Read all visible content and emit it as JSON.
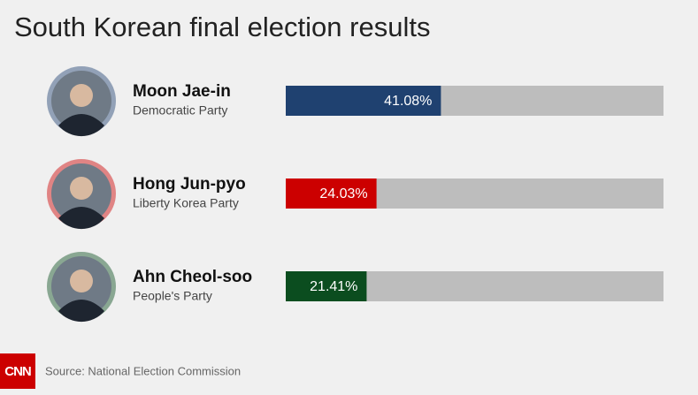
{
  "chart_data": {
    "type": "bar",
    "orientation": "horizontal",
    "title": "South Korean final election results",
    "categories": [
      "Moon Jae-in",
      "Hong Jun-pyo",
      "Ahn Cheol-soo"
    ],
    "parties": [
      "Democratic Party",
      "Liberty Korea Party",
      "People's Party"
    ],
    "values": [
      41.08,
      24.03,
      21.41
    ],
    "value_labels": [
      "41.08%",
      "24.03%",
      "21.41%"
    ],
    "colors": [
      "#1f4170",
      "#cc0000",
      "#0b4d1f"
    ],
    "xlim": [
      0,
      100
    ],
    "source": "Source: National Election Commission",
    "logo": "CNN"
  }
}
